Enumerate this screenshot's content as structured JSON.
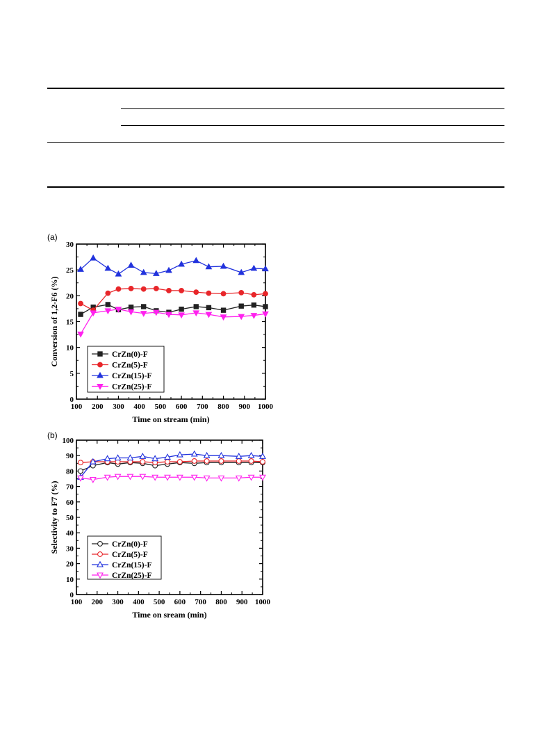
{
  "panels": {
    "a_label": "(a)",
    "b_label": "(b)"
  },
  "colors": {
    "CrZn(0)-F": "#222222",
    "CrZn(5)-F": "#e8262a",
    "CrZn(15)-F": "#2233dd",
    "CrZn(25)-F": "#ff22ee"
  },
  "chart_data": [
    {
      "type": "line",
      "panel": "(a)",
      "xlabel": "Time on stream (min)",
      "ylabel": "Conversion of 1,2-F6 (%)",
      "xlim": [
        100,
        1000
      ],
      "ylim": [
        0,
        30
      ],
      "xticks": [
        100,
        200,
        300,
        400,
        500,
        600,
        700,
        800,
        900,
        1000
      ],
      "yticks": [
        0,
        5,
        10,
        15,
        20,
        25,
        30
      ],
      "x": [
        120,
        180,
        250,
        300,
        360,
        420,
        480,
        540,
        600,
        670,
        730,
        800,
        885,
        945,
        1000
      ],
      "legend_position": "bottom-left",
      "series": [
        {
          "name": "CrZn(0)-F",
          "marker": "square",
          "filled": true,
          "values": [
            16.4,
            17.8,
            18.3,
            17.3,
            17.8,
            17.9,
            17.1,
            16.8,
            17.4,
            17.9,
            17.7,
            17.2,
            18.0,
            18.2,
            17.9
          ]
        },
        {
          "name": "CrZn(5)-F",
          "marker": "circle",
          "filled": true,
          "values": [
            18.5,
            17.2,
            20.5,
            21.3,
            21.4,
            21.3,
            21.4,
            21.0,
            21.0,
            20.7,
            20.5,
            20.4,
            20.6,
            20.2,
            20.4
          ]
        },
        {
          "name": "CrZn(15)-F",
          "marker": "triangle-up",
          "filled": true,
          "values": [
            25.1,
            27.3,
            25.3,
            24.2,
            25.9,
            24.5,
            24.3,
            24.9,
            26.1,
            26.8,
            25.6,
            25.7,
            24.5,
            25.3,
            25.2
          ]
        },
        {
          "name": "CrZn(25)-F",
          "marker": "triangle-down",
          "filled": true,
          "values": [
            12.6,
            16.7,
            17.1,
            17.4,
            16.9,
            16.6,
            16.8,
            16.4,
            16.3,
            16.7,
            16.4,
            15.9,
            16.0,
            16.2,
            16.5
          ]
        }
      ]
    },
    {
      "type": "line",
      "panel": "(b)",
      "xlabel": "Time on sream (min)",
      "ylabel": "Selectivity to F7 (%)",
      "xlim": [
        100,
        1000
      ],
      "ylim": [
        0,
        100
      ],
      "xticks": [
        100,
        200,
        300,
        400,
        500,
        600,
        700,
        800,
        900,
        1000
      ],
      "yticks": [
        0,
        10,
        20,
        30,
        40,
        50,
        60,
        70,
        80,
        90,
        100
      ],
      "x": [
        120,
        180,
        250,
        300,
        360,
        420,
        480,
        540,
        600,
        670,
        730,
        800,
        885,
        945,
        1000
      ],
      "legend_position": "bottom-left",
      "series": [
        {
          "name": "CrZn(0)-F",
          "marker": "circle",
          "filled": false,
          "values": [
            80.0,
            83.5,
            85.5,
            84.5,
            85.5,
            85.0,
            83.5,
            84.5,
            85.5,
            85.0,
            85.5,
            85.5,
            85.5,
            85.5,
            85.5
          ]
        },
        {
          "name": "CrZn(5)-F",
          "marker": "circle",
          "filled": false,
          "values": [
            85.5,
            86.0,
            86.0,
            86.0,
            86.0,
            86.0,
            85.5,
            86.0,
            86.0,
            86.5,
            86.5,
            86.5,
            86.5,
            86.5,
            86.0
          ]
        },
        {
          "name": "CrZn(15)-F",
          "marker": "triangle-up",
          "filled": false,
          "values": [
            76.0,
            86.0,
            88.0,
            88.5,
            88.5,
            89.5,
            88.0,
            89.0,
            90.5,
            91.0,
            90.0,
            90.0,
            89.5,
            90.0,
            89.5
          ]
        },
        {
          "name": "CrZn(25)-F",
          "marker": "triangle-down",
          "filled": false,
          "values": [
            75.5,
            74.5,
            76.0,
            76.5,
            76.5,
            76.5,
            76.0,
            76.0,
            76.0,
            76.0,
            75.5,
            75.5,
            75.5,
            76.0,
            76.0
          ]
        }
      ]
    }
  ]
}
